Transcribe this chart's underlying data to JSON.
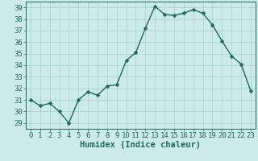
{
  "x": [
    0,
    1,
    2,
    3,
    4,
    5,
    6,
    7,
    8,
    9,
    10,
    11,
    12,
    13,
    14,
    15,
    16,
    17,
    18,
    19,
    20,
    21,
    22,
    23
  ],
  "y": [
    31.0,
    30.5,
    30.7,
    30.0,
    29.0,
    31.0,
    31.7,
    31.4,
    32.2,
    32.3,
    34.4,
    35.1,
    37.2,
    39.1,
    38.4,
    38.3,
    38.5,
    38.8,
    38.5,
    37.5,
    36.1,
    34.8,
    34.1,
    31.8
  ],
  "line_color": "#1a6b5a",
  "marker": "D",
  "markersize": 2.5,
  "linewidth": 1.0,
  "bg_color": "#cceaea",
  "grid_color": "#a8cccc",
  "xlabel": "Humidex (Indice chaleur)",
  "ylabel": "",
  "xlim": [
    -0.5,
    23.5
  ],
  "ylim": [
    28.5,
    39.5
  ],
  "yticks": [
    29,
    30,
    31,
    32,
    33,
    34,
    35,
    36,
    37,
    38,
    39
  ],
  "xticks": [
    0,
    1,
    2,
    3,
    4,
    5,
    6,
    7,
    8,
    9,
    10,
    11,
    12,
    13,
    14,
    15,
    16,
    17,
    18,
    19,
    20,
    21,
    22,
    23
  ],
  "tick_color": "#1a6b5a",
  "tick_fontsize": 6.5,
  "xlabel_fontsize": 7.5
}
